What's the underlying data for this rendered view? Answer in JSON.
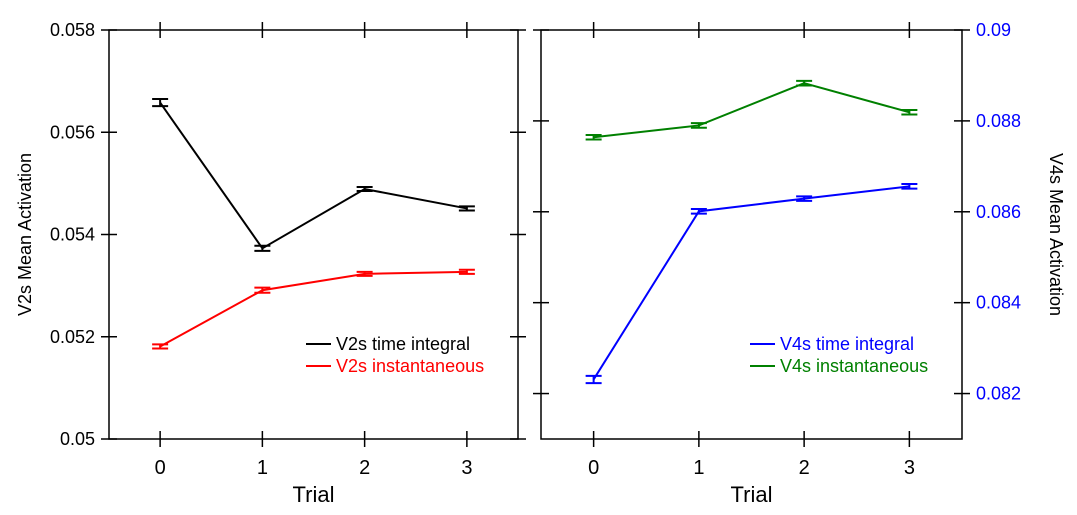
{
  "chart_data": [
    {
      "type": "line",
      "categories": [
        "0",
        "1",
        "2",
        "3"
      ],
      "x": [
        0,
        1,
        2,
        3
      ],
      "xlabel": "Trial",
      "ylabel": "V2s Mean Activation",
      "xlim": [
        -0.5,
        3.5
      ],
      "ylim": [
        0.05,
        0.058
      ],
      "yticks": [
        "0.05",
        "0.052",
        "0.054",
        "0.056",
        "0.058"
      ],
      "tick_color": "#000000",
      "legend_position": "bottom-right",
      "series": [
        {
          "name": "V2s time integral",
          "color": "#000000",
          "values": [
            0.05658,
            0.05373,
            0.05489,
            0.05451
          ],
          "errors": [
            7e-05,
            5e-05,
            4e-05,
            4e-05
          ]
        },
        {
          "name": "V2s instantaneous",
          "color": "#ff0000",
          "values": [
            0.05181,
            0.05291,
            0.05323,
            0.05327
          ],
          "errors": [
            4e-05,
            5e-05,
            4e-05,
            4e-05
          ]
        }
      ]
    },
    {
      "type": "line",
      "categories": [
        "0",
        "1",
        "2",
        "3"
      ],
      "x": [
        0,
        1,
        2,
        3
      ],
      "xlabel": "Trial",
      "ylabel": "V4s Mean Activation",
      "ylabel_side": "right",
      "xlim": [
        -0.5,
        3.5
      ],
      "ylim": [
        0.081,
        0.09
      ],
      "yticks": [
        "0.082",
        "0.084",
        "0.086",
        "0.088",
        "0.09"
      ],
      "tick_color": "#0000ff",
      "legend_position": "bottom-right",
      "series": [
        {
          "name": "V4s time integral",
          "color": "#0000ff",
          "values": [
            0.08231,
            0.08601,
            0.08629,
            0.08656
          ],
          "errors": [
            8e-05,
            5e-05,
            5e-05,
            5e-05
          ]
        },
        {
          "name": "V4s instantaneous",
          "color": "#008000",
          "values": [
            0.08764,
            0.0879,
            0.08883,
            0.08819
          ],
          "errors": [
            5e-05,
            5e-05,
            5e-05,
            5e-05
          ]
        }
      ]
    }
  ]
}
